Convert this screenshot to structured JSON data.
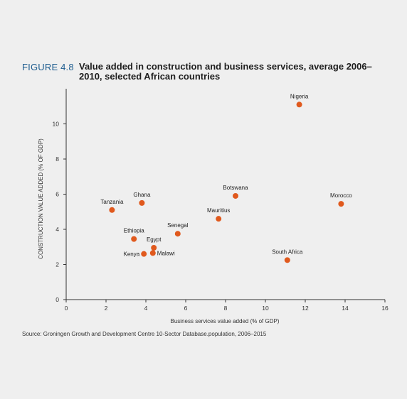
{
  "figure": {
    "label": "FIGURE 4.8",
    "title": "Value added in construction and business services, average 2006–2010, selected African countries"
  },
  "source": "Source: Groningen Growth and Development Centre 10-Sector Database.population, 2006–2015",
  "colors": {
    "point": "#e0591d",
    "axis": "#333333",
    "label_blue": "#1d5c8f"
  },
  "chart_data": {
    "type": "scatter",
    "xlabel": "Business services value added (% of GDP)",
    "ylabel": "CONSTRUCTION VALUE ADDED (% OF GDP)",
    "xlim": [
      0,
      16
    ],
    "ylim": [
      0,
      12
    ],
    "xticks": [
      0,
      2,
      4,
      6,
      8,
      10,
      12,
      14,
      16
    ],
    "yticks": [
      0,
      2,
      4,
      6,
      8,
      10
    ],
    "grid": false,
    "points": [
      {
        "label": "Nigeria",
        "x": 11.7,
        "y": 11.1
      },
      {
        "label": "Botswana",
        "x": 8.5,
        "y": 5.9
      },
      {
        "label": "Morocco",
        "x": 13.8,
        "y": 5.45
      },
      {
        "label": "Mauritius",
        "x": 7.65,
        "y": 4.6
      },
      {
        "label": "Tanzania",
        "x": 2.3,
        "y": 5.1
      },
      {
        "label": "Ghana",
        "x": 3.8,
        "y": 5.5
      },
      {
        "label": "Senegal",
        "x": 5.6,
        "y": 3.75
      },
      {
        "label": "Ethiopia",
        "x": 3.4,
        "y": 3.45
      },
      {
        "label": "Egypt",
        "x": 4.4,
        "y": 2.95
      },
      {
        "label": "Kenya",
        "x": 3.9,
        "y": 2.6
      },
      {
        "label": "Malawi",
        "x": 4.35,
        "y": 2.65
      },
      {
        "label": "South Africa",
        "x": 11.1,
        "y": 2.25
      }
    ]
  }
}
